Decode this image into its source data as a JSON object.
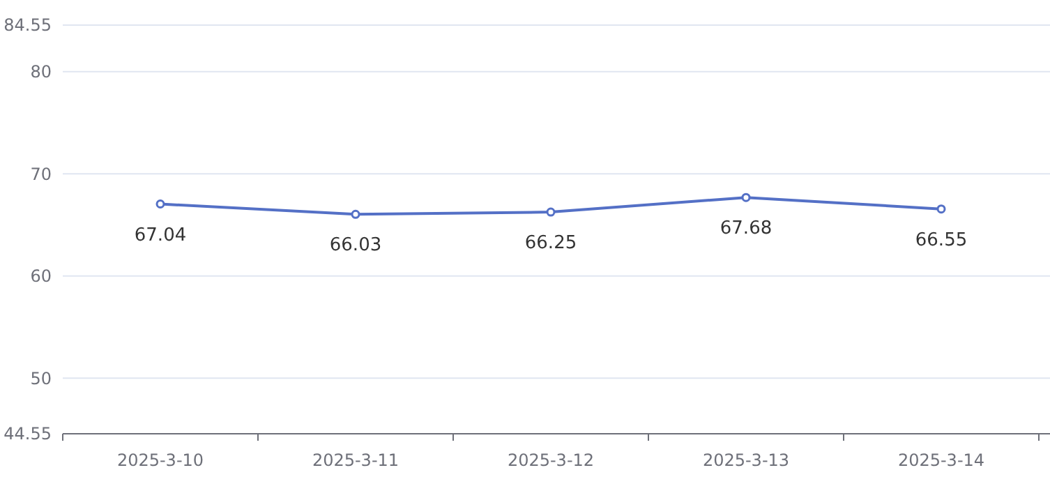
{
  "chart_data": {
    "type": "line",
    "categories": [
      "2025-3-10",
      "2025-3-11",
      "2025-3-12",
      "2025-3-13",
      "2025-3-14"
    ],
    "series": [
      {
        "color": "#5470c6",
        "values": [
          67.04,
          66.03,
          66.25,
          67.68,
          66.55
        ]
      }
    ],
    "ylim": [
      44.55,
      84.55
    ],
    "yticks": [
      44.55,
      50,
      60,
      70,
      80,
      84.55
    ],
    "grid": "y",
    "marker": "circle",
    "line_style": "solid",
    "data_labels": true
  }
}
